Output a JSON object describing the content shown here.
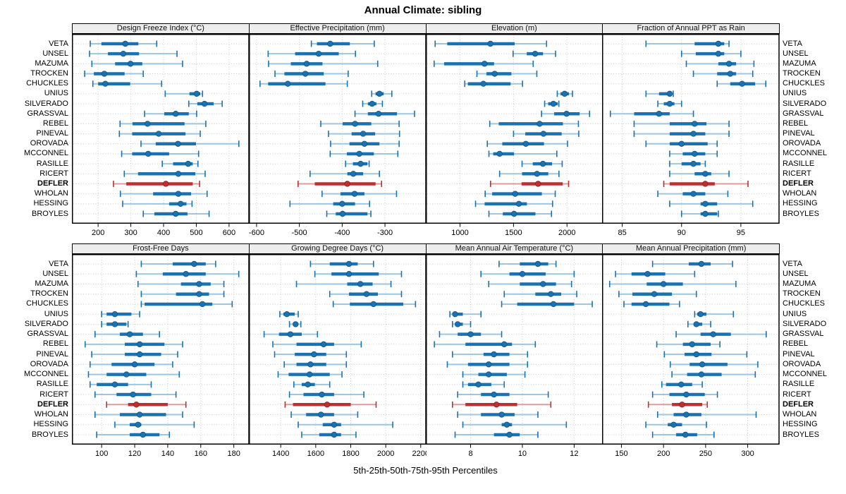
{
  "title": "Annual Climate: sibling",
  "footer": "5th-25th-50th-75th-95th Percentiles",
  "percentiles": [
    "5th",
    "25th",
    "50th",
    "75th",
    "95th"
  ],
  "highlight_site": "DEFLER",
  "sites": [
    "VETA",
    "UNSEL",
    "MAZUMA",
    "TROCKEN",
    "CHUCKLES",
    "UNIUS",
    "SILVERADO",
    "GRASSVAL",
    "REBEL",
    "PINEVAL",
    "OROVADA",
    "MCCONNEL",
    "RASILLE",
    "RICERT",
    "DEFLER",
    "WHOLAN",
    "HESSING",
    "BROYLES"
  ],
  "colors": {
    "series": "#1B72B2",
    "series_light": "#9EC6E1",
    "highlight": "#BE2F2F",
    "highlight_light": "#DE9B9B",
    "dot_edge": "#10567F",
    "dot_edge_highlight": "#8F1F1F",
    "grid": "#C9C9C9",
    "strip_bg": "#EDEDED",
    "border": "#000000"
  },
  "chart_data": [
    {
      "type": "interval",
      "title": "Design Freeze Index (°C)",
      "xlim": [
        120,
        660
      ],
      "ticks": [
        200,
        300,
        400,
        500,
        600
      ],
      "values": [
        [
          176,
          210,
          283,
          323,
          379
        ],
        [
          174,
          230,
          277,
          325,
          441
        ],
        [
          181,
          252,
          299,
          335,
          458
        ],
        [
          159,
          187,
          219,
          281,
          338
        ],
        [
          184,
          200,
          222,
          298,
          394
        ],
        [
          405,
          479,
          501,
          512,
          519
        ],
        [
          477,
          503,
          525,
          553,
          579
        ],
        [
          342,
          402,
          437,
          477,
          501
        ],
        [
          267,
          305,
          351,
          464,
          529
        ],
        [
          265,
          304,
          385,
          467,
          512
        ],
        [
          331,
          376,
          444,
          499,
          630
        ],
        [
          272,
          304,
          353,
          417,
          507
        ],
        [
          396,
          429,
          475,
          489,
          505
        ],
        [
          280,
          322,
          445,
          497,
          527
        ],
        [
          247,
          286,
          407,
          489,
          510
        ],
        [
          268,
          368,
          445,
          484,
          533
        ],
        [
          275,
          417,
          452,
          470,
          487
        ],
        [
          338,
          372,
          437,
          473,
          539
        ]
      ]
    },
    {
      "type": "interval",
      "title": "Effective Precipitation (mm)",
      "xlim": [
        -618,
        -205
      ],
      "ticks": [
        -600,
        -500,
        -400,
        -300
      ],
      "values": [
        [
          -472,
          -459,
          -428,
          -382,
          -325
        ],
        [
          -573,
          -510,
          -455,
          -408,
          -369
        ],
        [
          -572,
          -520,
          -483,
          -446,
          -317
        ],
        [
          -557,
          -535,
          -486,
          -443,
          -386
        ],
        [
          -592,
          -573,
          -527,
          -439,
          -388
        ],
        [
          -331,
          -322,
          -313,
          -303,
          -284
        ],
        [
          -352,
          -340,
          -330,
          -320,
          -306
        ],
        [
          -370,
          -340,
          -315,
          -272,
          -231
        ],
        [
          -450,
          -399,
          -370,
          -332,
          -267
        ],
        [
          -432,
          -378,
          -351,
          -323,
          -266
        ],
        [
          -427,
          -383,
          -348,
          -313,
          -267
        ],
        [
          -428,
          -389,
          -360,
          -326,
          -270
        ],
        [
          -392,
          -375,
          -357,
          -341,
          -337
        ],
        [
          -475,
          -388,
          -374,
          -351,
          -313
        ],
        [
          -503,
          -464,
          -388,
          -322,
          -308
        ],
        [
          -447,
          -404,
          -371,
          -348,
          -273
        ],
        [
          -522,
          -421,
          -400,
          -370,
          -336
        ],
        [
          -436,
          -415,
          -399,
          -341,
          -333
        ]
      ]
    },
    {
      "type": "interval",
      "title": "Elevation (m)",
      "xlim": [
        680,
        2333
      ],
      "ticks": [
        1000,
        1500,
        2000
      ],
      "values": [
        [
          767,
          880,
          1284,
          1511,
          1809
        ],
        [
          1496,
          1624,
          1702,
          1776,
          1893
        ],
        [
          758,
          851,
          1229,
          1318,
          1684
        ],
        [
          1158,
          1247,
          1324,
          1480,
          1718
        ],
        [
          1044,
          1073,
          1218,
          1473,
          1584
        ],
        [
          1909,
          1940,
          1978,
          2018,
          2051
        ],
        [
          1791,
          1824,
          1873,
          1913,
          1924
        ],
        [
          1762,
          1880,
          1996,
          2118,
          2211
        ],
        [
          1278,
          1362,
          1744,
          1962,
          2107
        ],
        [
          1500,
          1610,
          1780,
          1950,
          2110
        ],
        [
          1255,
          1395,
          1615,
          1785,
          2005
        ],
        [
          1270,
          1310,
          1370,
          1505,
          1905
        ],
        [
          1580,
          1680,
          1775,
          1860,
          1955
        ],
        [
          1370,
          1580,
          1720,
          1825,
          1925
        ],
        [
          1285,
          1575,
          1730,
          1960,
          2015
        ],
        [
          1235,
          1300,
          1515,
          1765,
          1890
        ],
        [
          1145,
          1230,
          1550,
          1625,
          1865
        ],
        [
          1270,
          1400,
          1505,
          1705,
          1855
        ]
      ]
    },
    {
      "type": "interval",
      "title": "Fraction of Annual PPT as Rain",
      "xlim": [
        83.3,
        98.2
      ],
      "ticks": [
        85,
        90,
        95
      ],
      "values": [
        [
          87.0,
          91.1,
          93.1,
          93.6,
          94.0
        ],
        [
          90.0,
          91.2,
          93.1,
          93.6,
          95.0
        ],
        [
          90.4,
          93.1,
          94.0,
          94.6,
          96.1
        ],
        [
          91.0,
          93.0,
          94.1,
          94.6,
          96.0
        ],
        [
          93.0,
          94.1,
          95.1,
          96.2,
          97.1
        ],
        [
          87.0,
          88.1,
          89.0,
          89.2,
          89.3
        ],
        [
          88.0,
          88.5,
          89.0,
          89.4,
          90.0
        ],
        [
          84.0,
          86.0,
          88.1,
          89.0,
          91.0
        ],
        [
          86.0,
          89.0,
          91.1,
          92.1,
          94.0
        ],
        [
          86.0,
          89.0,
          91.0,
          92.0,
          94.0
        ],
        [
          87.0,
          89.0,
          90.0,
          92.2,
          93.0
        ],
        [
          89.0,
          90.1,
          91.1,
          92.0,
          93.0
        ],
        [
          89.0,
          90.0,
          91.0,
          91.6,
          92.0
        ],
        [
          89.0,
          91.1,
          92.0,
          92.5,
          94.0
        ],
        [
          88.5,
          89.0,
          92.0,
          92.8,
          95.6
        ],
        [
          88.0,
          90.1,
          91.0,
          92.0,
          93.9
        ],
        [
          89.0,
          91.6,
          92.0,
          93.0,
          96.0
        ],
        [
          90.0,
          91.6,
          92.0,
          93.0,
          93.1
        ]
      ]
    },
    {
      "type": "interval",
      "title": "Frost-Free Days",
      "xlim": [
        82,
        189
      ],
      "ticks": [
        100,
        120,
        140,
        160,
        180
      ],
      "values": [
        [
          124,
          143,
          156,
          163,
          169
        ],
        [
          121,
          137,
          151,
          163,
          183
        ],
        [
          122,
          148,
          159,
          166,
          174
        ],
        [
          124,
          145,
          159,
          165,
          174
        ],
        [
          124,
          126,
          161,
          167,
          179
        ],
        [
          100,
          103,
          108,
          118,
          123
        ],
        [
          100,
          103,
          108,
          115,
          116
        ],
        [
          96,
          111,
          117,
          125,
          135
        ],
        [
          90,
          114,
          123,
          138,
          149
        ],
        [
          94,
          114,
          123,
          136,
          146
        ],
        [
          93,
          106,
          120,
          132,
          143
        ],
        [
          92,
          103,
          115,
          127,
          147
        ],
        [
          93,
          97,
          108,
          116,
          130
        ],
        [
          96,
          109,
          119,
          130,
          145
        ],
        [
          103,
          116,
          121,
          140,
          151
        ],
        [
          96,
          111,
          123,
          139,
          149
        ],
        [
          108,
          117,
          122,
          124,
          156
        ],
        [
          97,
          117,
          125,
          135,
          141
        ]
      ]
    },
    {
      "type": "interval",
      "title": "Growing Degree Days (°C)",
      "xlim": [
        1218,
        2228
      ],
      "ticks": [
        1400,
        1600,
        1800,
        2000,
        2200
      ],
      "values": [
        [
          1570,
          1680,
          1790,
          1840,
          1930
        ],
        [
          1595,
          1690,
          1790,
          1960,
          2090
        ],
        [
          1490,
          1780,
          1855,
          1925,
          2030
        ],
        [
          1680,
          1790,
          1890,
          1955,
          2090
        ],
        [
          1700,
          1795,
          1930,
          2100,
          2170
        ],
        [
          1395,
          1415,
          1435,
          1480,
          1500
        ],
        [
          1450,
          1470,
          1485,
          1495,
          1515
        ],
        [
          1305,
          1390,
          1455,
          1520,
          1610
        ],
        [
          1355,
          1490,
          1645,
          1705,
          1860
        ],
        [
          1365,
          1480,
          1590,
          1660,
          1775
        ],
        [
          1420,
          1490,
          1570,
          1660,
          1775
        ],
        [
          1385,
          1445,
          1565,
          1680,
          1750
        ],
        [
          1475,
          1520,
          1555,
          1595,
          1680
        ],
        [
          1450,
          1530,
          1635,
          1705,
          1875
        ],
        [
          1425,
          1470,
          1665,
          1800,
          1945
        ],
        [
          1460,
          1545,
          1630,
          1705,
          1840
        ],
        [
          1500,
          1640,
          1705,
          1745,
          2040
        ],
        [
          1520,
          1620,
          1705,
          1745,
          1830
        ]
      ]
    },
    {
      "type": "interval",
      "title": "Mean Annual Air Temperature (°C)",
      "xlim": [
        6.27,
        13.1
      ],
      "ticks": [
        8,
        10,
        12
      ],
      "values": [
        [
          9.1,
          9.9,
          10.6,
          11.0,
          11.3
        ],
        [
          8.4,
          9.5,
          10.0,
          10.9,
          12.0
        ],
        [
          8.7,
          9.9,
          10.8,
          11.3,
          11.9
        ],
        [
          9.3,
          10.5,
          11.1,
          11.5,
          12.1
        ],
        [
          9.2,
          9.8,
          11.2,
          12.0,
          12.7
        ],
        [
          7.2,
          7.3,
          7.4,
          7.7,
          8.4
        ],
        [
          7.3,
          7.4,
          7.5,
          7.7,
          8.0
        ],
        [
          6.8,
          7.5,
          8.0,
          8.4,
          9.2
        ],
        [
          6.6,
          7.8,
          9.3,
          9.6,
          10.5
        ],
        [
          7.3,
          8.5,
          8.9,
          9.5,
          10.2
        ],
        [
          7.1,
          7.9,
          8.7,
          9.5,
          10.2
        ],
        [
          7.7,
          8.3,
          8.7,
          9.4,
          10.1
        ],
        [
          7.7,
          7.9,
          8.3,
          8.8,
          9.3
        ],
        [
          7.5,
          8.4,
          8.9,
          9.5,
          11.0
        ],
        [
          7.3,
          7.8,
          9.0,
          9.8,
          11.1
        ],
        [
          7.5,
          8.4,
          9.2,
          9.7,
          10.6
        ],
        [
          7.7,
          9.2,
          9.4,
          9.6,
          11.7
        ],
        [
          7.4,
          8.9,
          9.5,
          9.9,
          10.6
        ]
      ]
    },
    {
      "type": "interval",
      "title": "Mean Annual Precipitation (mm)",
      "xlim": [
        127,
        337
      ],
      "ticks": [
        150,
        200,
        250,
        300
      ],
      "values": [
        [
          187,
          230,
          245,
          256,
          282
        ],
        [
          143,
          162,
          181,
          202,
          237
        ],
        [
          136,
          180,
          200,
          223,
          286
        ],
        [
          147,
          163,
          189,
          210,
          239
        ],
        [
          153,
          162,
          179,
          207,
          219
        ],
        [
          237,
          240,
          244,
          251,
          283
        ],
        [
          229,
          236,
          239,
          246,
          256
        ],
        [
          215,
          244,
          259,
          280,
          322
        ],
        [
          192,
          223,
          234,
          256,
          267
        ],
        [
          201,
          225,
          239,
          257,
          299
        ],
        [
          208,
          231,
          246,
          276,
          312
        ],
        [
          210,
          228,
          245,
          269,
          309
        ],
        [
          198,
          203,
          221,
          234,
          246
        ],
        [
          187,
          207,
          227,
          249,
          264
        ],
        [
          182,
          210,
          222,
          246,
          252
        ],
        [
          193,
          212,
          227,
          245,
          310
        ],
        [
          179,
          205,
          212,
          222,
          251
        ],
        [
          187,
          215,
          226,
          240,
          260
        ]
      ]
    }
  ]
}
